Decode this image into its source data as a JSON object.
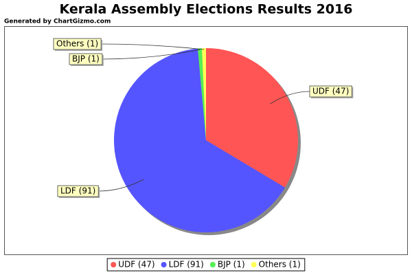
{
  "chart_data": {
    "type": "pie",
    "title": "Kerala Assembly Elections Results 2016",
    "subtitle": "Generated by ChartGizmo.com",
    "categories": [
      "UDF (47)",
      "LDF (91)",
      "BJP (1)",
      "Others (1)"
    ],
    "values": [
      47,
      91,
      1,
      1
    ],
    "colors": [
      "#ff5555",
      "#5555ff",
      "#55ee55",
      "#ffff55"
    ],
    "legend": "bottom"
  }
}
